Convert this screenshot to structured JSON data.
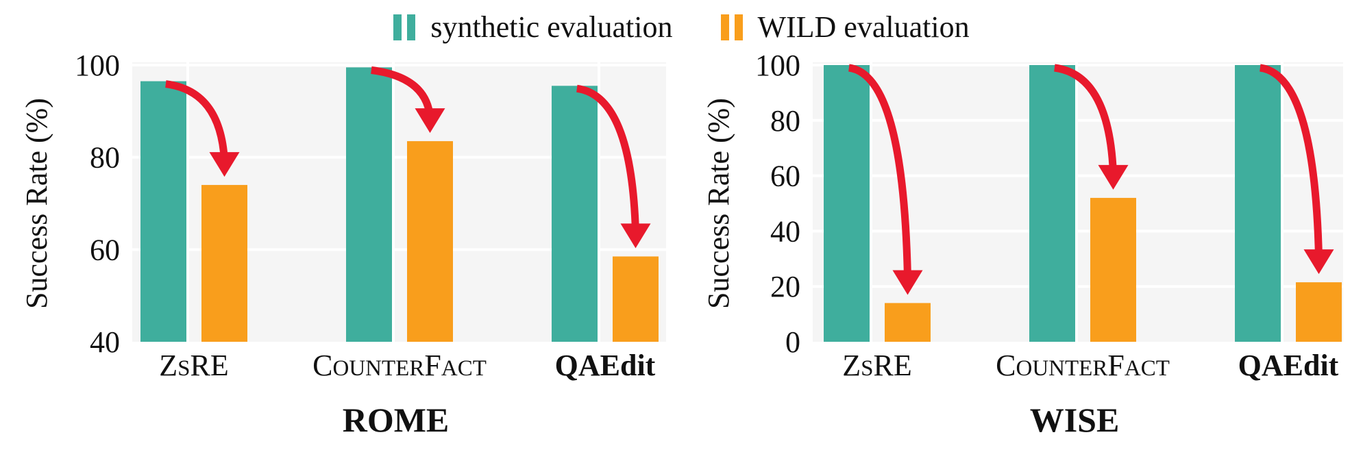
{
  "legend": {
    "synthetic": {
      "label": "synthetic evaluation",
      "color": "#3FAE9D"
    },
    "wild": {
      "label": "WILD evaluation",
      "color": "#F99E1C"
    }
  },
  "arrow_color": "#E8192C",
  "chart_data": [
    {
      "type": "bar",
      "title": "ROME",
      "ylabel": "Success Rate (%)",
      "ylim": [
        40,
        100
      ],
      "yticks": [
        40,
        60,
        80,
        100
      ],
      "categories": [
        "ZsRE",
        "CounterFact",
        "QAEdit"
      ],
      "series": [
        {
          "name": "synthetic evaluation",
          "values": [
            96.5,
            99.5,
            95.5
          ]
        },
        {
          "name": "WILD evaluation",
          "values": [
            74.0,
            83.5,
            58.5
          ]
        }
      ],
      "grid": true,
      "legend_position": "top-center"
    },
    {
      "type": "bar",
      "title": "WISE",
      "ylabel": "Success Rate (%)",
      "ylim": [
        0,
        100
      ],
      "yticks": [
        0,
        20,
        40,
        60,
        80,
        100
      ],
      "categories": [
        "ZsRE",
        "CounterFact",
        "QAEdit"
      ],
      "series": [
        {
          "name": "synthetic evaluation",
          "values": [
            100,
            100,
            100
          ]
        },
        {
          "name": "WILD evaluation",
          "values": [
            14.0,
            52.0,
            21.5
          ]
        }
      ],
      "grid": true,
      "legend_position": "top-center"
    }
  ]
}
